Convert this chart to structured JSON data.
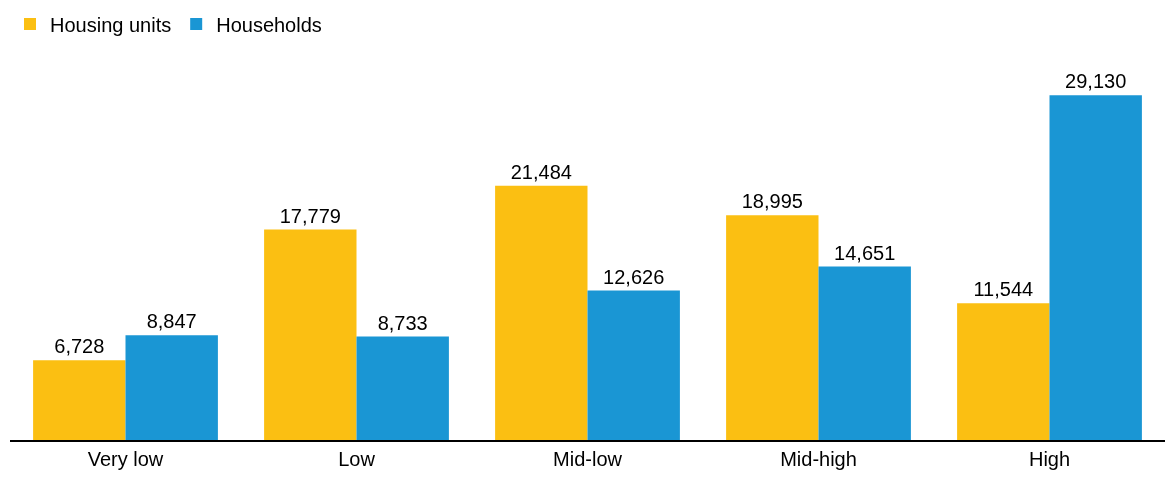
{
  "chart_data": {
    "type": "bar",
    "categories": [
      "Very low",
      "Low",
      "Mid-low",
      "Mid-high",
      "High"
    ],
    "series": [
      {
        "name": "Housing units",
        "color": "#fbbf12",
        "values": [
          6728,
          17779,
          21484,
          18995,
          11544
        ],
        "value_labels": [
          "6,728",
          "17,779",
          "21,484",
          "18,995",
          "11,544"
        ]
      },
      {
        "name": "Households",
        "color": "#1a96d4",
        "values": [
          8847,
          8733,
          12626,
          14651,
          29130
        ],
        "value_labels": [
          "8,847",
          "8,733",
          "12,626",
          "14,651",
          "29,130"
        ]
      }
    ],
    "legend": "top left",
    "grid": false
  }
}
